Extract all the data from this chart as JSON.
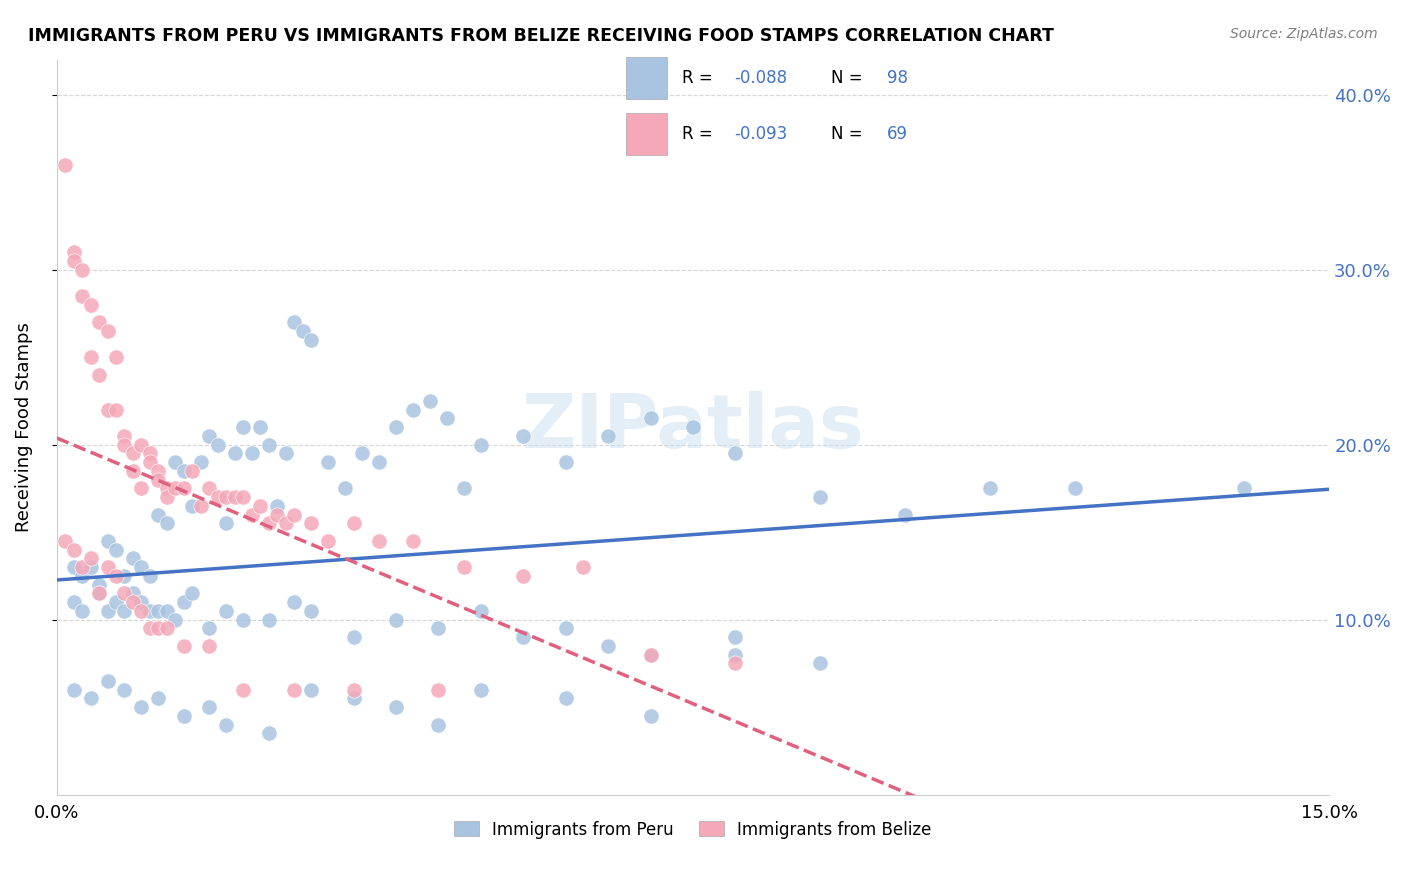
{
  "title": "IMMIGRANTS FROM PERU VS IMMIGRANTS FROM BELIZE RECEIVING FOOD STAMPS CORRELATION CHART",
  "source": "Source: ZipAtlas.com",
  "ylabel": "Receiving Food Stamps",
  "legend_peru_R": "-0.088",
  "legend_peru_N": "98",
  "legend_belize_R": "-0.093",
  "legend_belize_N": "69",
  "legend_bottom_peru": "Immigrants from Peru",
  "legend_bottom_belize": "Immigrants from Belize",
  "xmin": 0.0,
  "xmax": 0.15,
  "ymin": 0.0,
  "ymax": 0.42,
  "ytick_vals": [
    0.1,
    0.2,
    0.3,
    0.4
  ],
  "ytick_labels": [
    "10.0%",
    "20.0%",
    "30.0%",
    "40.0%"
  ],
  "peru_color": "#a8c4e0",
  "belize_color": "#f4a8b8",
  "peru_line_color": "#4472c4",
  "belize_line_color": "#e06080",
  "peru_scatter_x": [
    0.002,
    0.003,
    0.004,
    0.005,
    0.006,
    0.007,
    0.008,
    0.009,
    0.01,
    0.011,
    0.012,
    0.013,
    0.014,
    0.015,
    0.016,
    0.017,
    0.018,
    0.019,
    0.02,
    0.021,
    0.022,
    0.023,
    0.024,
    0.025,
    0.026,
    0.027,
    0.028,
    0.029,
    0.03,
    0.032,
    0.034,
    0.036,
    0.038,
    0.04,
    0.042,
    0.044,
    0.046,
    0.048,
    0.05,
    0.055,
    0.06,
    0.065,
    0.07,
    0.075,
    0.08,
    0.09,
    0.1,
    0.11,
    0.12,
    0.14,
    0.002,
    0.003,
    0.005,
    0.006,
    0.007,
    0.008,
    0.009,
    0.01,
    0.011,
    0.012,
    0.013,
    0.014,
    0.015,
    0.016,
    0.018,
    0.02,
    0.022,
    0.025,
    0.028,
    0.03,
    0.035,
    0.04,
    0.045,
    0.05,
    0.055,
    0.06,
    0.065,
    0.07,
    0.08,
    0.09,
    0.002,
    0.004,
    0.006,
    0.008,
    0.01,
    0.012,
    0.015,
    0.018,
    0.02,
    0.025,
    0.03,
    0.035,
    0.04,
    0.045,
    0.05,
    0.06,
    0.07,
    0.08
  ],
  "peru_scatter_y": [
    0.13,
    0.125,
    0.13,
    0.12,
    0.145,
    0.14,
    0.125,
    0.135,
    0.13,
    0.125,
    0.16,
    0.155,
    0.19,
    0.185,
    0.165,
    0.19,
    0.205,
    0.2,
    0.155,
    0.195,
    0.21,
    0.195,
    0.21,
    0.2,
    0.165,
    0.195,
    0.27,
    0.265,
    0.26,
    0.19,
    0.175,
    0.195,
    0.19,
    0.21,
    0.22,
    0.225,
    0.215,
    0.175,
    0.2,
    0.205,
    0.19,
    0.205,
    0.215,
    0.21,
    0.195,
    0.17,
    0.16,
    0.175,
    0.175,
    0.175,
    0.11,
    0.105,
    0.115,
    0.105,
    0.11,
    0.105,
    0.115,
    0.11,
    0.105,
    0.105,
    0.105,
    0.1,
    0.11,
    0.115,
    0.095,
    0.105,
    0.1,
    0.1,
    0.11,
    0.105,
    0.09,
    0.1,
    0.095,
    0.105,
    0.09,
    0.095,
    0.085,
    0.08,
    0.08,
    0.075,
    0.06,
    0.055,
    0.065,
    0.06,
    0.05,
    0.055,
    0.045,
    0.05,
    0.04,
    0.035,
    0.06,
    0.055,
    0.05,
    0.04,
    0.06,
    0.055,
    0.045,
    0.09
  ],
  "belize_scatter_x": [
    0.001,
    0.002,
    0.002,
    0.003,
    0.003,
    0.004,
    0.004,
    0.005,
    0.005,
    0.006,
    0.006,
    0.007,
    0.007,
    0.008,
    0.008,
    0.009,
    0.009,
    0.01,
    0.01,
    0.011,
    0.011,
    0.012,
    0.012,
    0.013,
    0.013,
    0.014,
    0.015,
    0.016,
    0.017,
    0.018,
    0.019,
    0.02,
    0.021,
    0.022,
    0.023,
    0.024,
    0.025,
    0.026,
    0.027,
    0.028,
    0.03,
    0.032,
    0.035,
    0.038,
    0.042,
    0.048,
    0.055,
    0.062,
    0.07,
    0.08,
    0.001,
    0.002,
    0.003,
    0.004,
    0.005,
    0.006,
    0.007,
    0.008,
    0.009,
    0.01,
    0.011,
    0.012,
    0.013,
    0.015,
    0.018,
    0.022,
    0.028,
    0.035,
    0.045
  ],
  "belize_scatter_y": [
    0.36,
    0.31,
    0.305,
    0.3,
    0.285,
    0.28,
    0.25,
    0.27,
    0.24,
    0.265,
    0.22,
    0.25,
    0.22,
    0.205,
    0.2,
    0.195,
    0.185,
    0.2,
    0.175,
    0.195,
    0.19,
    0.185,
    0.18,
    0.175,
    0.17,
    0.175,
    0.175,
    0.185,
    0.165,
    0.175,
    0.17,
    0.17,
    0.17,
    0.17,
    0.16,
    0.165,
    0.155,
    0.16,
    0.155,
    0.16,
    0.155,
    0.145,
    0.155,
    0.145,
    0.145,
    0.13,
    0.125,
    0.13,
    0.08,
    0.075,
    0.145,
    0.14,
    0.13,
    0.135,
    0.115,
    0.13,
    0.125,
    0.115,
    0.11,
    0.105,
    0.095,
    0.095,
    0.095,
    0.085,
    0.085,
    0.06,
    0.06,
    0.06,
    0.06
  ]
}
